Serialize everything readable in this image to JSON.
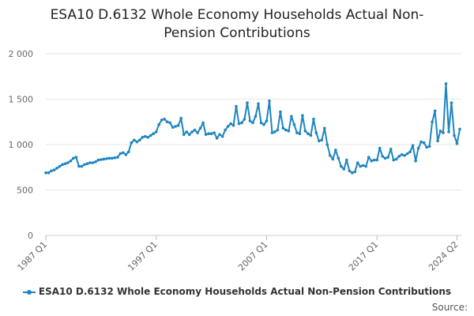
{
  "chart_data": {
    "type": "line",
    "title_line1": "ESA10 D.6132 Whole Economy Households Actual Non-",
    "title_line2": "Pension Contributions",
    "xlabel": "",
    "ylabel": "",
    "ylim": [
      0,
      2000
    ],
    "y_ticks": [
      0,
      500,
      1000,
      1500,
      2000
    ],
    "y_tick_labels": [
      "0",
      "500",
      "1 000",
      "1 500",
      "2 000"
    ],
    "x_tick_labels": [
      "1987 Q1",
      "1997 Q1",
      "2007 Q1",
      "2017 Q1",
      "2024 Q2"
    ],
    "x_tick_indices": [
      0,
      40,
      80,
      120,
      149
    ],
    "grid": true,
    "legend_position": "bottom",
    "line_color": "#1f85c0",
    "series": [
      {
        "name": "ESA10 D.6132 Whole Economy Households Actual Non-Pension Contributions",
        "start": "1987 Q1",
        "frequency": "quarterly",
        "values": [
          690,
          690,
          710,
          720,
          740,
          760,
          780,
          790,
          800,
          820,
          850,
          860,
          760,
          760,
          780,
          790,
          800,
          800,
          810,
          830,
          835,
          840,
          845,
          850,
          850,
          855,
          860,
          900,
          910,
          890,
          920,
          1020,
          1050,
          1030,
          1050,
          1080,
          1090,
          1080,
          1100,
          1120,
          1140,
          1220,
          1270,
          1280,
          1250,
          1240,
          1190,
          1200,
          1210,
          1290,
          1110,
          1140,
          1110,
          1140,
          1160,
          1130,
          1180,
          1240,
          1110,
          1120,
          1120,
          1130,
          1070,
          1110,
          1090,
          1160,
          1200,
          1230,
          1210,
          1420,
          1230,
          1240,
          1280,
          1460,
          1260,
          1240,
          1310,
          1450,
          1240,
          1220,
          1260,
          1480,
          1130,
          1140,
          1160,
          1360,
          1180,
          1160,
          1150,
          1310,
          1220,
          1130,
          1120,
          1320,
          1150,
          1120,
          1100,
          1280,
          1130,
          1040,
          1050,
          1180,
          1000,
          880,
          840,
          940,
          850,
          760,
          730,
          830,
          710,
          690,
          700,
          800,
          760,
          770,
          760,
          860,
          820,
          830,
          830,
          960,
          870,
          850,
          860,
          950,
          830,
          840,
          870,
          890,
          880,
          900,
          920,
          990,
          820,
          960,
          1030,
          1020,
          970,
          980,
          1250,
          1370,
          1040,
          1150,
          1130,
          1670,
          1140,
          1460,
          1100,
          1010,
          1170
        ]
      }
    ]
  },
  "legend": {
    "label": "ESA10 D.6132 Whole Economy Households Actual Non-Pension Contributions"
  },
  "source_label": "Source:"
}
